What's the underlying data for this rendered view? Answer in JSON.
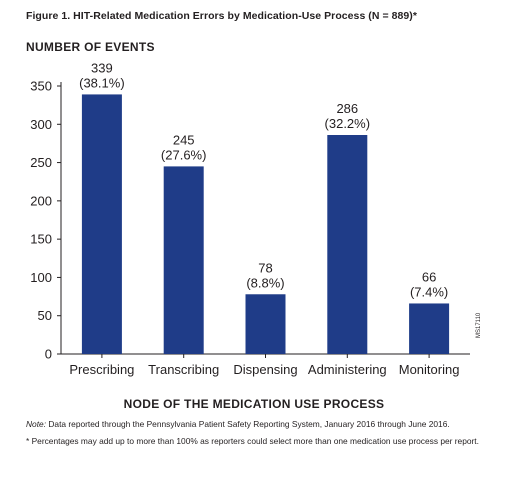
{
  "figure_title": "Figure 1. HIT-Related Medication Errors by Medication-Use Process (N = 889)*",
  "figure_id": "MS17110",
  "note_label": "Note:",
  "note_text": "Data reported through the Pennsylvania Patient Safety Reporting System, January 2016 through June 2016.",
  "footnote": "* Percentages may add up to more than 100% as reporters could select more than one medication use process per report.",
  "colors": {
    "bar": "#1f3c88",
    "axis": "#231f20"
  },
  "chart_data": {
    "type": "bar",
    "title": "HIT-Related Medication Errors by Medication-Use Process (N = 889)*",
    "ylabel": "NUMBER OF EVENTS",
    "xlabel": "NODE OF THE MEDICATION USE PROCESS",
    "categories": [
      "Prescribing",
      "Transcribing",
      "Dispensing",
      "Administering",
      "Monitoring"
    ],
    "values": [
      339,
      245,
      78,
      286,
      66
    ],
    "data_labels": [
      "339",
      "245",
      "78",
      "286",
      "66"
    ],
    "percent_labels": [
      "(38.1%)",
      "(27.6%)",
      "(8.8%)",
      "(32.2%)",
      "(7.4%)"
    ],
    "yticks": [
      0,
      50,
      100,
      150,
      200,
      250,
      300,
      350
    ],
    "ylim": [
      0,
      350
    ],
    "grid": false
  }
}
